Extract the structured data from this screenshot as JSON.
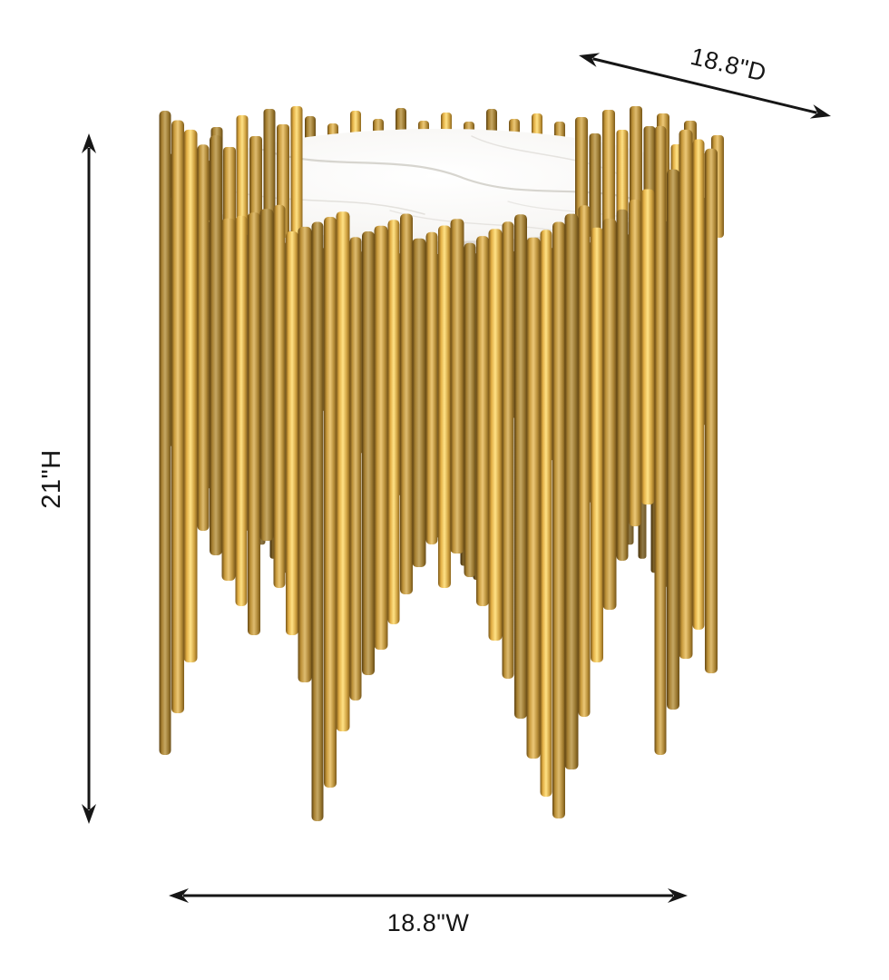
{
  "product_diagram": {
    "dimensions": {
      "height": "21\"H",
      "depth": "18.8\"D",
      "width": "18.8\"W"
    },
    "colors": {
      "annotation_line": "#161616",
      "gold_ramp": [
        "#6b4c14",
        "#c89a3c",
        "#ecc877",
        "#b9903a",
        "#7c5a1a"
      ],
      "apron_ramp": [
        "#e0ba63",
        "#bd9030",
        "#a57b22",
        "#c99f44"
      ],
      "marble_top": "#f8f7f5",
      "marble_tint": "#eae8e4",
      "marble_edge": "#dcd8d2",
      "marble_vein": "#d3d0ca",
      "background": "#ffffff"
    }
  }
}
